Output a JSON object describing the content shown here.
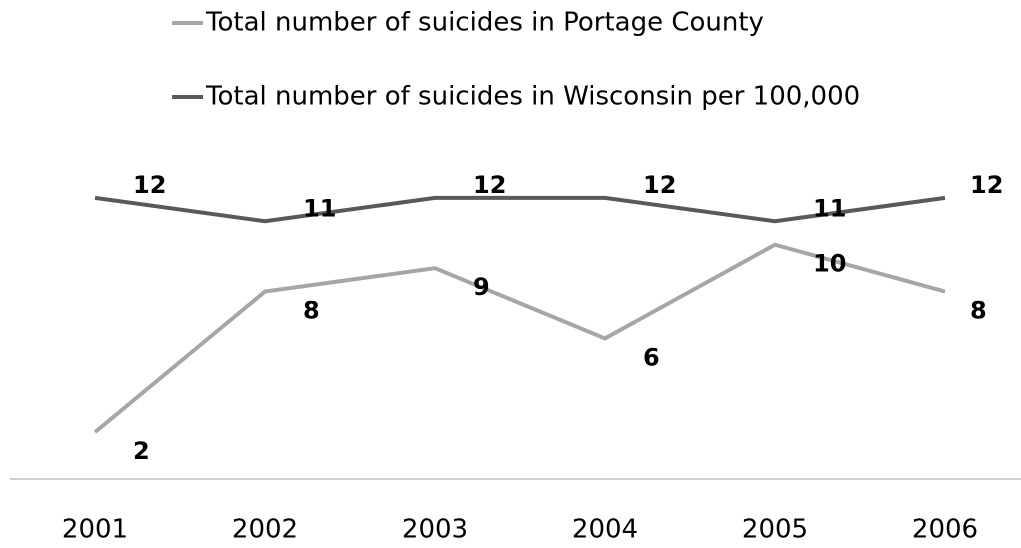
{
  "chart_data": {
    "type": "line",
    "categories": [
      "2001",
      "2002",
      "2003",
      "2004",
      "2005",
      "2006"
    ],
    "series": [
      {
        "name": "Total number of suicides in Portage County",
        "color": "#a6a6a6",
        "values": [
          2,
          8,
          9,
          6,
          10,
          8
        ]
      },
      {
        "name": "Total number of suicides in Wisconsin per 100,000",
        "color": "#595959",
        "values": [
          12,
          11,
          12,
          12,
          11,
          12
        ]
      }
    ],
    "ylim": [
      0,
      14
    ],
    "legend": "top",
    "data_labels": true
  }
}
